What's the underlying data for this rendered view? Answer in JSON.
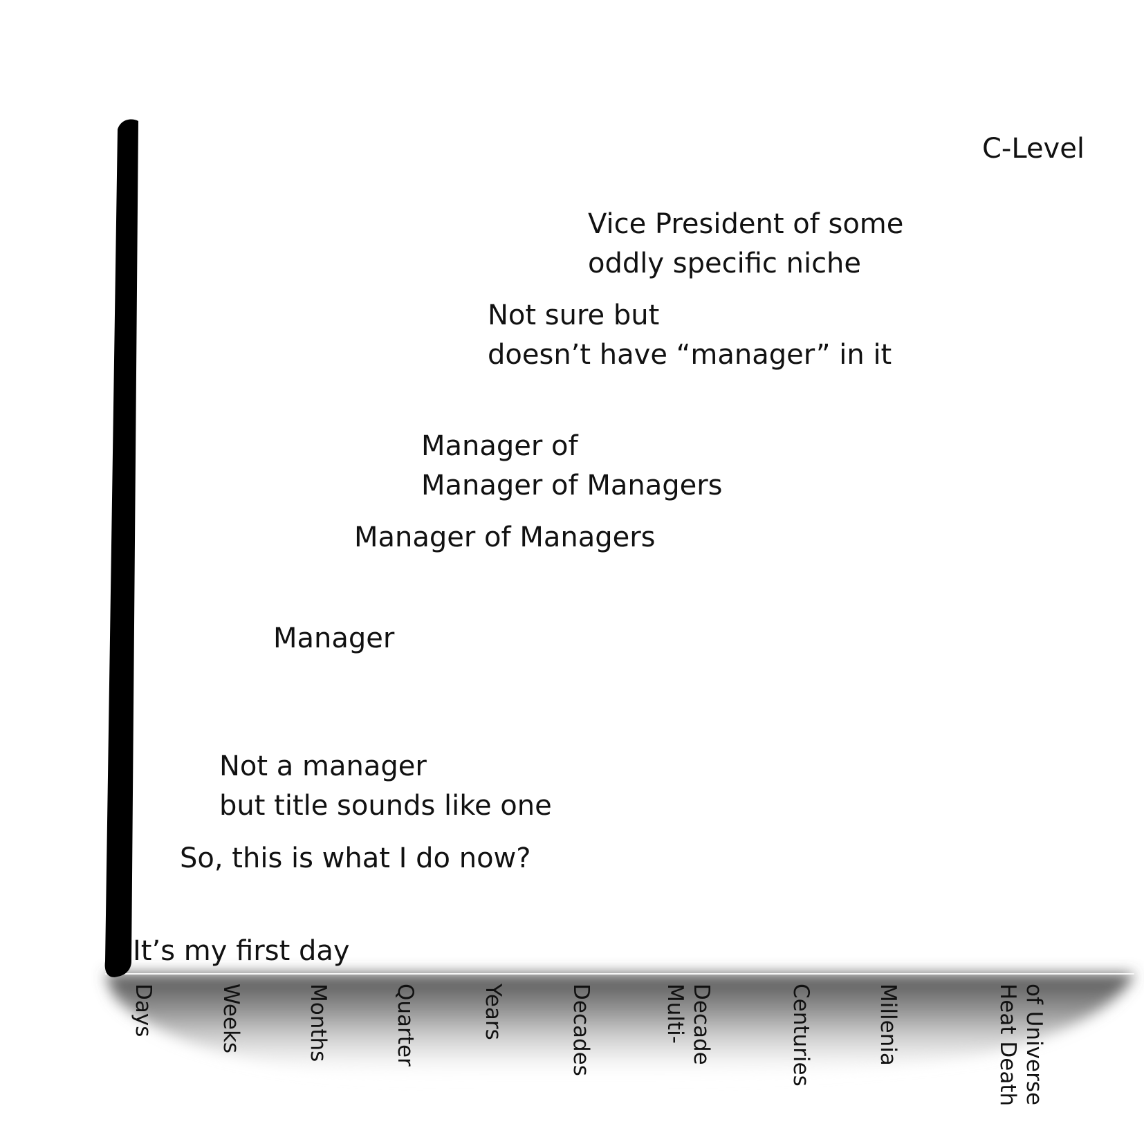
{
  "chart_data": {
    "type": "scatter",
    "title": "",
    "xlabel": "",
    "ylabel": "",
    "grid": false,
    "legend": "none",
    "x_ticks": [
      "Days",
      "Weeks",
      "Months",
      "Quarter",
      "Years",
      "Decades",
      "Multi-\nDecade",
      "Centuries",
      "Millenia",
      "Heat Death\nof Universe"
    ],
    "points": [
      {
        "label": "It’s my first day",
        "x": "Days"
      },
      {
        "label": "So, this is what I do now?",
        "x": "Days"
      },
      {
        "label": "Not a manager\nbut title sounds like one",
        "x": "Weeks"
      },
      {
        "label": "Manager",
        "x": "Weeks"
      },
      {
        "label": "Manager of Managers",
        "x": "Months"
      },
      {
        "label": "Manager of\nManager of Managers",
        "x": "Quarter"
      },
      {
        "label": "Not sure but\ndoesn’t have “manager” in it",
        "x": "Years"
      },
      {
        "label": "Vice President of some\noddly specific niche",
        "x": "Decades"
      },
      {
        "label": "C-Level",
        "x": "Heat Death\nof Universe"
      }
    ],
    "colors": {
      "axis": "#000000",
      "text": "#111111",
      "shadow": "#666666",
      "background": "#ffffff"
    }
  }
}
